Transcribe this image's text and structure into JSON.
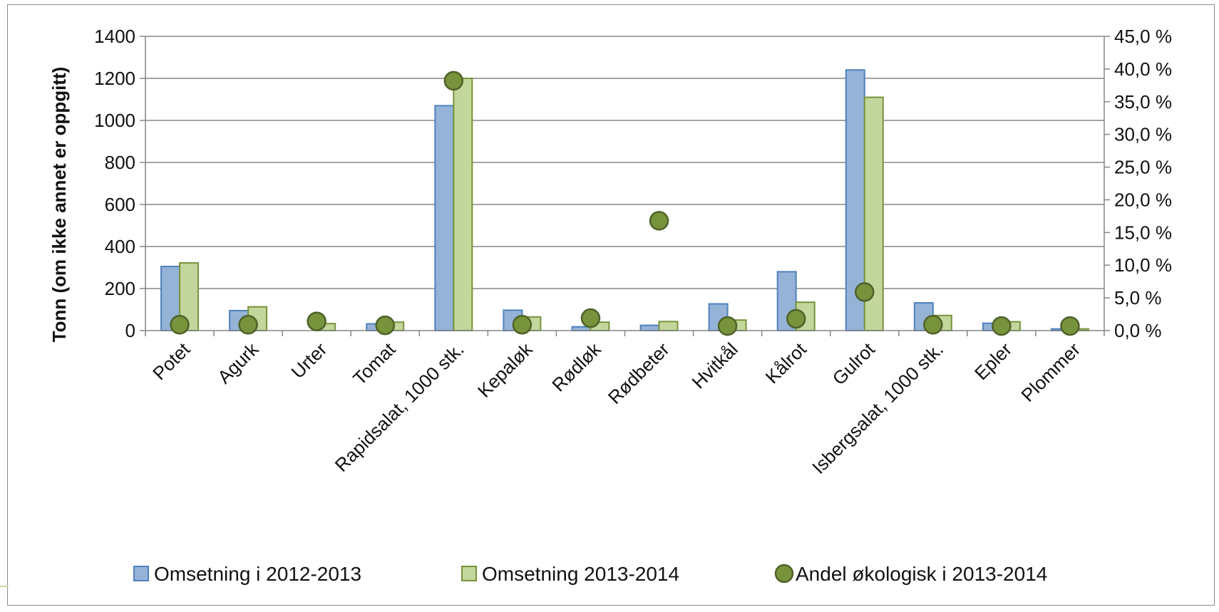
{
  "chart_data": {
    "type": "bar",
    "title": "",
    "ylabel": "Tonn (om ikke annet er oppgitt)",
    "y2label": "",
    "ylim": [
      0,
      1400
    ],
    "yticks": [
      "0",
      "200",
      "400",
      "600",
      "800",
      "1000",
      "1200",
      "1400"
    ],
    "y2lim": [
      0,
      45
    ],
    "y2ticks": [
      "0,0 %",
      "5,0 %",
      "10,0 %",
      "15,0 %",
      "20,0 %",
      "25,0 %",
      "30,0 %",
      "35,0 %",
      "40,0 %",
      "45,0 %"
    ],
    "grid": true,
    "legend_position": "bottom",
    "categories": [
      "Potet",
      "Agurk",
      "Urter",
      "Tomat",
      "Rapidsalat, 1000 stk.",
      "Kepaløk",
      "Rødløk",
      "Rødbeter",
      "Hvitkål",
      "Kålrot",
      "Gulrot",
      "Isbergsalat, 1000 stk.",
      "Epler",
      "Plommer"
    ],
    "series": [
      {
        "name": "Omsetning i 2012-2013",
        "type": "bar",
        "axis": "left",
        "color": "#95b3d7",
        "border": "#4f81bd",
        "values": [
          305,
          95,
          0,
          32,
          1070,
          97,
          18,
          25,
          127,
          280,
          1240,
          132,
          35,
          8
        ]
      },
      {
        "name": "Omsetning 2013-2014",
        "type": "bar",
        "axis": "left",
        "color": "#c3d69b",
        "border": "#77933c",
        "values": [
          322,
          113,
          33,
          40,
          1200,
          65,
          40,
          43,
          50,
          135,
          1110,
          72,
          42,
          8
        ]
      },
      {
        "name": "Andel økologisk i 2013-2014",
        "type": "scatter",
        "axis": "right",
        "color": "#77933c",
        "border": "#4f6228",
        "values": [
          0.9,
          0.9,
          1.4,
          0.8,
          38.2,
          0.9,
          1.9,
          16.8,
          0.7,
          1.8,
          5.9,
          0.9,
          0.7,
          0.7
        ]
      }
    ]
  }
}
